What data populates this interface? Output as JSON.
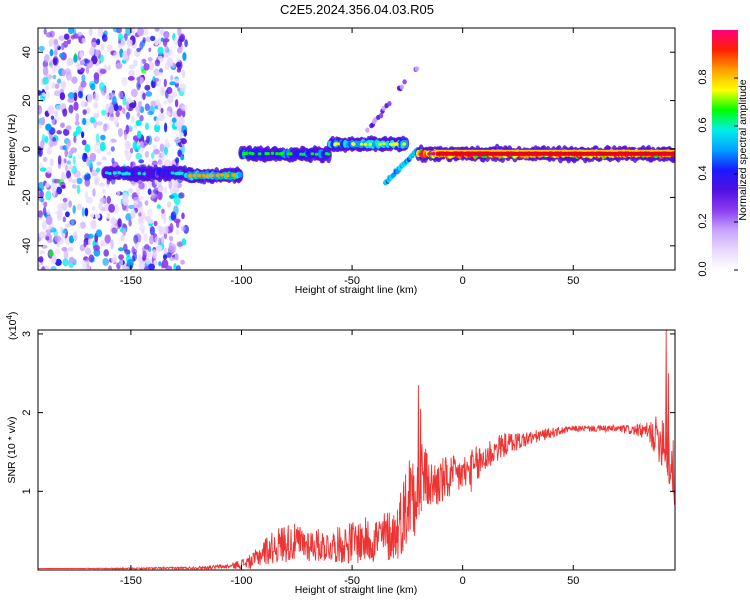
{
  "title": "C2E5.2024.356.04.03.R05",
  "colors": {
    "snr_line": "#ee3333",
    "spectrogram_palette": [
      "#ffffff",
      "#e8d8ff",
      "#c6a2ff",
      "#8a3cf0",
      "#5010e0",
      "#1a1aff",
      "#00a0ff",
      "#00f0e8",
      "#00ff00",
      "#ffff00",
      "#ffa000",
      "#ff2000",
      "#ff0080"
    ]
  },
  "chart_data": [
    {
      "type": "heatmap",
      "xlabel": "Height of straight line (km)",
      "ylabel": "Frequency (Hz)",
      "xlim": [
        -192,
        96
      ],
      "ylim": [
        -50,
        50
      ],
      "x_ticks": [
        -150,
        -100,
        -50,
        0,
        50
      ],
      "y_ticks": [
        -40,
        -20,
        0,
        20,
        40
      ],
      "colorbar": {
        "label": "Normalized spectral amplitude",
        "range": [
          0,
          1
        ],
        "ticks": [
          "0.0",
          "0.2",
          "0.4",
          "0.6",
          "0.8"
        ],
        "tick_values": [
          0.0,
          0.2,
          0.4,
          0.6,
          0.8
        ]
      },
      "features": [
        {
          "region": "noise",
          "x": [
            -192,
            -125
          ],
          "freq": [
            -50,
            50
          ],
          "amplitude": 0.2
        },
        {
          "region": "signal_trace",
          "x": [
            -162,
            -125
          ],
          "freq_center": -10,
          "amplitude": 0.4
        },
        {
          "region": "signal_trace",
          "x": [
            -125,
            -100
          ],
          "freq_center": -11,
          "amplitude": 0.65
        },
        {
          "region": "signal_trace",
          "x": [
            -100,
            -60
          ],
          "freq_center": -2,
          "amplitude": 0.5
        },
        {
          "region": "signal_trace",
          "x": [
            -60,
            -25
          ],
          "freq_center": 2,
          "amplitude": 0.6
        },
        {
          "region": "branch_up",
          "x": [
            -45,
            -20
          ],
          "freq": [
            5,
            35
          ],
          "amplitude": 0.15
        },
        {
          "region": "branch_down",
          "x": [
            -35,
            -20
          ],
          "freq": [
            -14,
            0
          ],
          "amplitude": 0.4
        },
        {
          "region": "signal_trace",
          "x": [
            -20,
            96
          ],
          "freq_center": -2,
          "amplitude": 0.95
        }
      ]
    },
    {
      "type": "line",
      "xlabel": "Height of straight line (km)",
      "ylabel": "SNR (10 * v/v)",
      "y_scale_label": "(x10",
      "y_scale_exp": "4",
      "y_scale_close": ")",
      "xlim": [
        -192,
        96
      ],
      "ylim": [
        0,
        3.05
      ],
      "x_ticks": [
        -150,
        -100,
        -50,
        0,
        50
      ],
      "y_ticks": [
        1,
        2,
        3
      ],
      "envelope": {
        "x": [
          -192,
          -150,
          -120,
          -105,
          -95,
          -90,
          -80,
          -70,
          -60,
          -50,
          -40,
          -30,
          -25,
          -22,
          -20,
          -18,
          -15,
          -10,
          -5,
          0,
          5,
          10,
          15,
          20,
          30,
          40,
          50,
          60,
          70,
          80,
          85,
          90,
          92,
          94,
          96
        ],
        "y": [
          0.02,
          0.02,
          0.03,
          0.05,
          0.12,
          0.25,
          0.38,
          0.35,
          0.32,
          0.38,
          0.42,
          0.5,
          0.9,
          1.2,
          1.2,
          1.3,
          1.1,
          1.15,
          1.2,
          1.25,
          1.3,
          1.45,
          1.55,
          1.62,
          1.68,
          1.75,
          1.8,
          1.8,
          1.8,
          1.78,
          1.75,
          1.7,
          1.8,
          1.4,
          1.2
        ],
        "noise": [
          0.0,
          0.01,
          0.02,
          0.04,
          0.12,
          0.22,
          0.32,
          0.28,
          0.25,
          0.35,
          0.38,
          0.45,
          0.7,
          0.9,
          0.75,
          0.55,
          0.4,
          0.4,
          0.35,
          0.3,
          0.35,
          0.3,
          0.22,
          0.18,
          0.12,
          0.08,
          0.05,
          0.05,
          0.06,
          0.1,
          0.2,
          0.45,
          0.7,
          0.6,
          0.5
        ]
      },
      "peaks": [
        {
          "x": -20,
          "y": 2.35
        },
        {
          "x": -19,
          "y": 2.05
        },
        {
          "x": 92,
          "y": 3.05
        },
        {
          "x": 93,
          "y": 2.5
        }
      ]
    }
  ]
}
